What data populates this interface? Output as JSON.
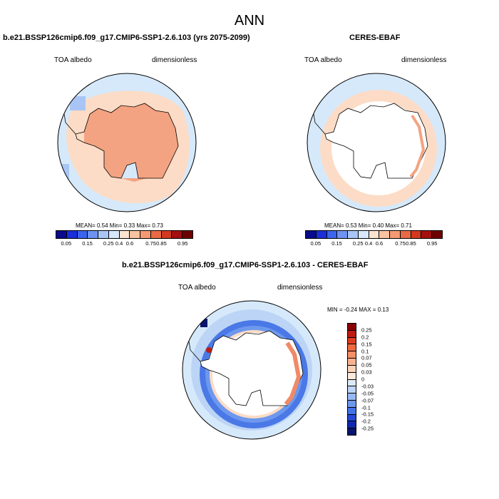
{
  "main_title": "ANN",
  "panel1": {
    "title": "b.e21.BSSP126cmip6.f09_g17.CMIP6-SSP1-2.6.103 (yrs 2075-2099)",
    "left_label": "TOA albedo",
    "right_label": "dimensionless",
    "stats": "MEAN=   0.54  Min=   0.33  Max=   0.73"
  },
  "panel2": {
    "title": "CERES-EBAF",
    "left_label": "TOA albedo",
    "right_label": "dimensionless",
    "stats": "MEAN=   0.53  Min=   0.40  Max=   0.71"
  },
  "panel3": {
    "title": "b.e21.BSSP126cmip6.f09_g17.CMIP6-SSP1-2.6.103 - CERES-EBAF",
    "left_label": "TOA albedo",
    "right_label": "dimensionless",
    "stats": "MIN =  -0.24 MAX =   0.13"
  },
  "colorbar_top": {
    "labels": [
      "0.05",
      "0.15",
      "0.25",
      "0.4",
      "0.6",
      "0.75",
      "0.85",
      "0.95"
    ],
    "colors": [
      "#0a0a8c",
      "#1a2fd8",
      "#3c64ee",
      "#6e93f0",
      "#a9c5f5",
      "#d8e6fb",
      "#fce3cf",
      "#f9c3a2",
      "#f49a73",
      "#e86a45",
      "#d23a20",
      "#a40f0f",
      "#6e0000"
    ]
  },
  "colorbar_diff": {
    "labels": [
      "0.25",
      "0.2",
      "0.15",
      "0.1",
      "0.07",
      "0.05",
      "0.03",
      "0",
      "-0.03",
      "-0.05",
      "-0.07",
      "-0.1",
      "-0.15",
      "-0.2",
      "-0.25"
    ],
    "colors": [
      "#8b0000",
      "#c01a10",
      "#e03c20",
      "#f06840",
      "#f48f68",
      "#f8b290",
      "#fbd2b8",
      "#fde9dc",
      "#dce9f8",
      "#bcd4f5",
      "#97b9f2",
      "#6d98ee",
      "#4472e8",
      "#2548d6",
      "#1028b0",
      "#08146e"
    ]
  },
  "colors": {
    "ocean_light": "#d6e9fb",
    "model_ice": "#fcdcc6",
    "model_land": "#f4a382",
    "obs_ring": "#fde3d0",
    "diff_blue": "#4a78e6",
    "diff_red": "#f08a66"
  }
}
